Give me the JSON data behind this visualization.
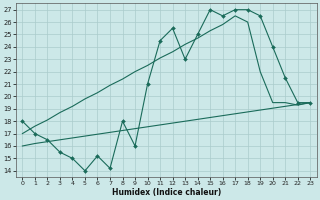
{
  "xlabel": "Humidex (Indice chaleur)",
  "xlim": [
    -0.5,
    23.5
  ],
  "ylim": [
    13.5,
    27.5
  ],
  "yticks": [
    14,
    15,
    16,
    17,
    18,
    19,
    20,
    21,
    22,
    23,
    24,
    25,
    26,
    27
  ],
  "xticks": [
    0,
    1,
    2,
    3,
    4,
    5,
    6,
    7,
    8,
    9,
    10,
    11,
    12,
    13,
    14,
    15,
    16,
    17,
    18,
    19,
    20,
    21,
    22,
    23
  ],
  "bg_color": "#cce8e8",
  "grid_color": "#aacccc",
  "line_color": "#1a6b5a",
  "line1_x": [
    0,
    1,
    2,
    3,
    4,
    5,
    6,
    7,
    8,
    9,
    10,
    11,
    12,
    13,
    14,
    15,
    16,
    17,
    18,
    19,
    20,
    21,
    22,
    23
  ],
  "line1_y": [
    18.0,
    17.0,
    16.5,
    15.5,
    15.0,
    14.0,
    15.2,
    14.2,
    18.0,
    16.0,
    21.0,
    24.5,
    25.5,
    23.0,
    25.0,
    27.0,
    26.5,
    27.0,
    27.0,
    26.5,
    24.0,
    21.5,
    19.5,
    19.5
  ],
  "line2_x": [
    0,
    1,
    2,
    3,
    4,
    5,
    6,
    7,
    8,
    9,
    10,
    11,
    12,
    13,
    14,
    15,
    16,
    17,
    18,
    19,
    20,
    21,
    22,
    23
  ],
  "line2_y": [
    17.0,
    17.6,
    18.1,
    18.7,
    19.2,
    19.8,
    20.3,
    20.9,
    21.4,
    22.0,
    22.5,
    23.1,
    23.6,
    24.2,
    24.7,
    25.3,
    25.8,
    26.5,
    26.0,
    22.0,
    19.5,
    19.5,
    19.3,
    19.5
  ],
  "line3_x": [
    0,
    1,
    2,
    3,
    4,
    5,
    6,
    7,
    8,
    9,
    10,
    11,
    12,
    13,
    14,
    15,
    16,
    17,
    18,
    19,
    20,
    21,
    22,
    23
  ],
  "line3_y": [
    16.0,
    16.2,
    16.35,
    16.5,
    16.65,
    16.8,
    16.95,
    17.1,
    17.25,
    17.4,
    17.55,
    17.7,
    17.85,
    18.0,
    18.15,
    18.3,
    18.45,
    18.6,
    18.75,
    18.9,
    19.05,
    19.2,
    19.35,
    19.5
  ]
}
